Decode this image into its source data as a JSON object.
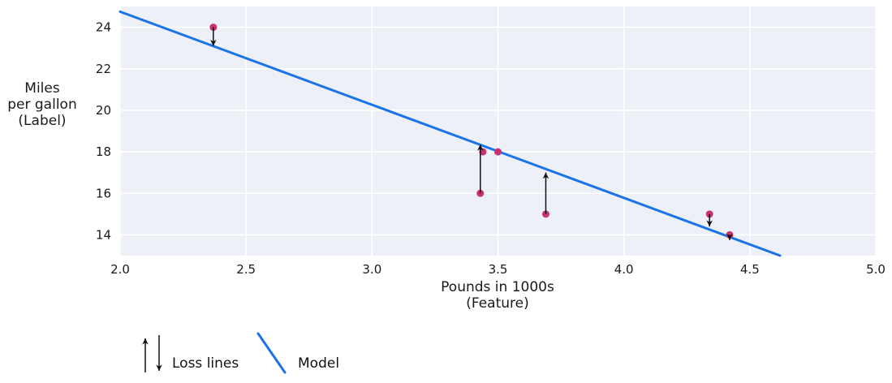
{
  "chart_data": {
    "type": "scatter",
    "title": "",
    "xlabel": "Pounds in 1000s\n(Feature)",
    "ylabel": "Miles\nper gallon\n(Label)",
    "xlim": [
      2.0,
      5.0
    ],
    "ylim": [
      13.0,
      25.0
    ],
    "x_tick_values": [
      2.0,
      2.5,
      3.0,
      3.5,
      4.0,
      4.5,
      5.0
    ],
    "x_tick_labels": [
      "2.0",
      "2.5",
      "3.0",
      "3.5",
      "4.0",
      "4.5",
      "5.0"
    ],
    "y_tick_values": [
      14,
      16,
      18,
      20,
      22,
      24
    ],
    "y_tick_labels": [
      "14",
      "16",
      "18",
      "20",
      "22",
      "24"
    ],
    "grid": true,
    "points": [
      {
        "x": 2.37,
        "y": 24
      },
      {
        "x": 3.43,
        "y": 16
      },
      {
        "x": 3.44,
        "y": 18
      },
      {
        "x": 3.5,
        "y": 18
      },
      {
        "x": 3.69,
        "y": 15
      },
      {
        "x": 4.34,
        "y": 15
      },
      {
        "x": 4.42,
        "y": 14
      }
    ],
    "model_line": {
      "x1": 2.0,
      "y1": 24.75,
      "x2": 4.62,
      "y2": 13.0
    },
    "loss_arrows": [
      {
        "x": 2.37,
        "from": 24,
        "to": 23.1,
        "direction": "down"
      },
      {
        "x": 3.43,
        "from": 16,
        "to": 18.35,
        "direction": "up"
      },
      {
        "x": 3.69,
        "from": 15,
        "to": 17.0,
        "direction": "up"
      },
      {
        "x": 4.34,
        "from": 15,
        "to": 14.4,
        "direction": "down"
      },
      {
        "x": 4.42,
        "from": 14,
        "to": 13.75,
        "direction": "down"
      }
    ],
    "legend": {
      "loss_label": "Loss lines",
      "model_label": "Model"
    },
    "legend_position": "below-bottom-left",
    "colors": {
      "model_line": "#1a73e8",
      "points": "#c8326f",
      "arrows": "#101010",
      "plot_background": "#edf1f7",
      "gridline": "#ffffff",
      "text": "#1a1a1a"
    }
  }
}
